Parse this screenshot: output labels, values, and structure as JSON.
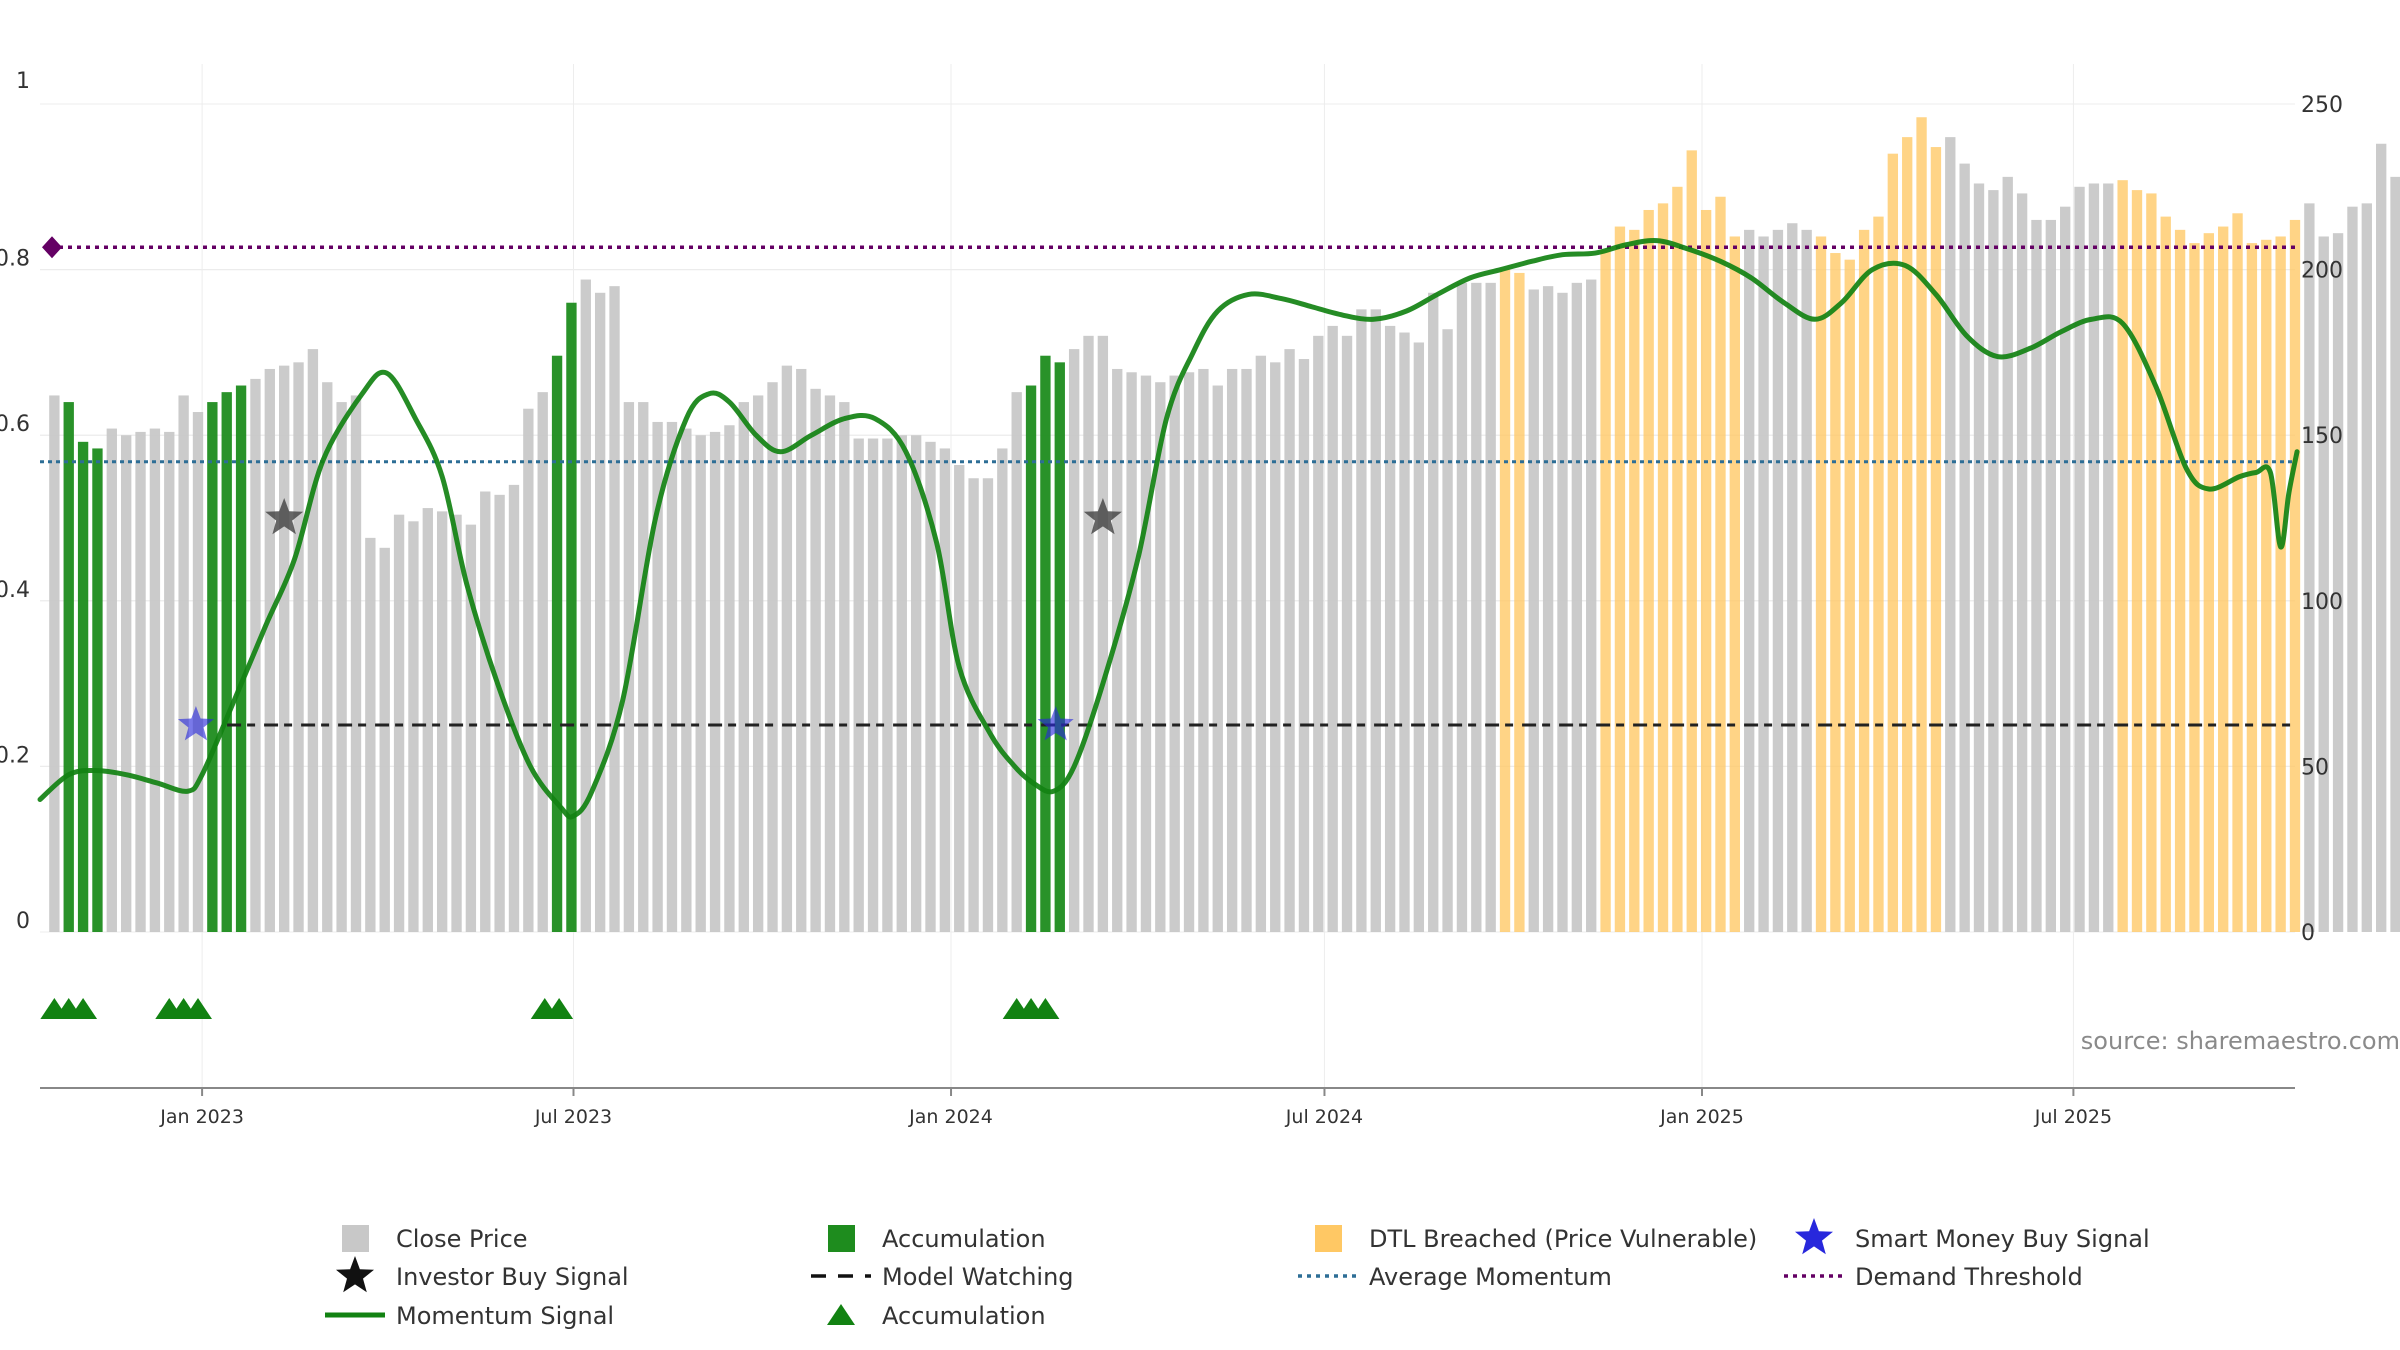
{
  "source_note": "source: sharemaestro.com",
  "colors": {
    "close_price": "#c8c8c8",
    "accumulation": "#1e8c1e",
    "dtl_breached": "#ffc864",
    "momentum": "#128212",
    "average_momentum": "#2d6e96",
    "demand_threshold": "#640064",
    "model_watching": "#222222",
    "smart_money": "#2828dc",
    "investor": "#444444",
    "accum_marker": "#128212"
  },
  "legend": [
    {
      "key": "close",
      "label": "Close Price",
      "icon": "gray-square-icon"
    },
    {
      "key": "accum_bar",
      "label": "Accumulation",
      "icon": "green-square-icon"
    },
    {
      "key": "dtl",
      "label": "DTL Breached (Price Vulnerable)",
      "icon": "orange-square-icon"
    },
    {
      "key": "smart",
      "label": "Smart Money Buy Signal",
      "icon": "blue-star-icon"
    },
    {
      "key": "investor",
      "label": "Investor Buy Signal",
      "icon": "black-star-icon"
    },
    {
      "key": "watching",
      "label": "Model Watching",
      "icon": "dashed-line-icon"
    },
    {
      "key": "avg",
      "label": "Average Momentum",
      "icon": "dotted-line-icon"
    },
    {
      "key": "demand",
      "label": "Demand Threshold",
      "icon": "purple-dotted-line-icon"
    },
    {
      "key": "momentum",
      "label": "Momentum Signal",
      "icon": "green-line-icon"
    },
    {
      "key": "accum_marker",
      "label": "Accumulation",
      "icon": "green-triangle-icon"
    }
  ],
  "chart_data": {
    "type": "bar",
    "title": "",
    "x_range": [
      "2022-10-14",
      "2025-10-17"
    ],
    "x_ticks": [
      {
        "date": "2023-01-01",
        "label": "Jan 2023"
      },
      {
        "date": "2023-07-01",
        "label": "Jul 2023"
      },
      {
        "date": "2024-01-01",
        "label": "Jan 2024"
      },
      {
        "date": "2024-07-01",
        "label": "Jul 2024"
      },
      {
        "date": "2025-01-01",
        "label": "Jan 2025"
      },
      {
        "date": "2025-07-01",
        "label": "Jul 2025"
      }
    ],
    "y_left": {
      "range": [
        0,
        1
      ],
      "ticks": [
        "0",
        "0.2",
        "0.4",
        "0.6",
        "0.8",
        "1"
      ]
    },
    "y_right": {
      "range": [
        0,
        250
      ],
      "ticks": [
        "0",
        "50",
        "100",
        "150",
        "200",
        "250"
      ]
    },
    "grid": true,
    "bar_start": "2022-10-21",
    "bar_interval_days": 7,
    "close_prices": [
      162,
      160,
      148,
      146,
      152,
      150,
      151,
      152,
      151,
      162,
      157,
      160,
      163,
      165,
      167,
      170,
      171,
      172,
      176,
      166,
      160,
      162,
      119,
      116,
      126,
      124,
      128,
      127,
      126,
      123,
      133,
      132,
      135,
      158,
      163,
      174,
      190,
      197,
      193,
      195,
      160,
      160,
      154,
      154,
      152,
      150,
      151,
      153,
      160,
      162,
      166,
      171,
      170,
      164,
      162,
      160,
      149,
      149,
      149,
      150,
      150,
      148,
      146,
      141,
      137,
      137,
      146,
      163,
      165,
      174,
      172,
      176,
      180,
      180,
      170,
      169,
      168,
      166,
      168,
      169,
      170,
      165,
      170,
      170,
      174,
      172,
      176,
      173,
      180,
      183,
      180,
      188,
      188,
      183,
      181,
      178,
      193,
      182,
      196,
      196,
      196,
      200,
      199,
      194,
      195,
      193,
      196,
      197,
      206,
      213,
      212,
      218,
      220,
      225,
      236,
      218,
      222,
      210,
      212,
      210,
      212,
      214,
      212,
      210,
      205,
      203,
      212,
      216,
      235,
      240,
      246,
      237,
      240,
      232,
      226,
      224,
      228,
      223,
      215,
      215,
      219,
      225,
      226,
      226,
      227,
      224,
      223,
      216,
      212,
      208,
      211,
      213,
      217,
      208,
      209,
      210,
      215,
      220,
      210,
      211,
      219,
      220,
      238,
      228,
      232
    ],
    "bar_categories": {
      "accumulation": [
        [
          1,
          1
        ],
        [
          2,
          2
        ],
        [
          3,
          3
        ],
        [
          11,
          11
        ],
        [
          12,
          12
        ],
        [
          13,
          13
        ],
        [
          35,
          35
        ],
        [
          36,
          36
        ],
        [
          68,
          68
        ],
        [
          69,
          69
        ],
        [
          70,
          70
        ]
      ],
      "dtl_breached": [
        [
          101,
          102
        ],
        [
          108,
          117
        ],
        [
          123,
          131
        ],
        [
          144,
          156
        ]
      ]
    },
    "series": [
      {
        "name": "Momentum Signal",
        "axis": "left",
        "points": [
          [
            "2022-10-14",
            0.16
          ],
          [
            "2022-10-28",
            0.19
          ],
          [
            "2022-11-10",
            0.195
          ],
          [
            "2022-11-25",
            0.19
          ],
          [
            "2022-12-10",
            0.18
          ],
          [
            "2022-12-25",
            0.17
          ],
          [
            "2023-01-01",
            0.19
          ],
          [
            "2023-01-15",
            0.27
          ],
          [
            "2023-02-01",
            0.37
          ],
          [
            "2023-02-15",
            0.45
          ],
          [
            "2023-03-01",
            0.57
          ],
          [
            "2023-03-20",
            0.65
          ],
          [
            "2023-04-01",
            0.675
          ],
          [
            "2023-04-15",
            0.62
          ],
          [
            "2023-04-28",
            0.55
          ],
          [
            "2023-05-10",
            0.42
          ],
          [
            "2023-05-25",
            0.3
          ],
          [
            "2023-06-10",
            0.2
          ],
          [
            "2023-06-25",
            0.15
          ],
          [
            "2023-07-01",
            0.14
          ],
          [
            "2023-07-10",
            0.17
          ],
          [
            "2023-07-25",
            0.28
          ],
          [
            "2023-08-10",
            0.5
          ],
          [
            "2023-08-25",
            0.62
          ],
          [
            "2023-09-05",
            0.65
          ],
          [
            "2023-09-15",
            0.64
          ],
          [
            "2023-09-28",
            0.6
          ],
          [
            "2023-10-10",
            0.58
          ],
          [
            "2023-10-25",
            0.6
          ],
          [
            "2023-11-10",
            0.62
          ],
          [
            "2023-11-25",
            0.62
          ],
          [
            "2023-12-10",
            0.58
          ],
          [
            "2023-12-25",
            0.47
          ],
          [
            "2024-01-05",
            0.32
          ],
          [
            "2024-01-20",
            0.24
          ],
          [
            "2024-02-01",
            0.2
          ],
          [
            "2024-02-10",
            0.18
          ],
          [
            "2024-02-20",
            0.17
          ],
          [
            "2024-03-01",
            0.2
          ],
          [
            "2024-03-15",
            0.3
          ],
          [
            "2024-04-01",
            0.45
          ],
          [
            "2024-04-15",
            0.62
          ],
          [
            "2024-04-28",
            0.7
          ],
          [
            "2024-05-10",
            0.75
          ],
          [
            "2024-05-25",
            0.77
          ],
          [
            "2024-06-10",
            0.765
          ],
          [
            "2024-06-25",
            0.755
          ],
          [
            "2024-07-10",
            0.745
          ],
          [
            "2024-07-25",
            0.74
          ],
          [
            "2024-08-10",
            0.75
          ],
          [
            "2024-08-25",
            0.77
          ],
          [
            "2024-09-10",
            0.79
          ],
          [
            "2024-09-25",
            0.8
          ],
          [
            "2024-10-10",
            0.81
          ],
          [
            "2024-10-25",
            0.818
          ],
          [
            "2024-11-10",
            0.82
          ],
          [
            "2024-11-25",
            0.83
          ],
          [
            "2024-12-10",
            0.835
          ],
          [
            "2024-12-25",
            0.825
          ],
          [
            "2025-01-10",
            0.81
          ],
          [
            "2025-01-25",
            0.79
          ],
          [
            "2025-02-10",
            0.76
          ],
          [
            "2025-02-25",
            0.74
          ],
          [
            "2025-03-10",
            0.76
          ],
          [
            "2025-03-25",
            0.8
          ],
          [
            "2025-04-10",
            0.805
          ],
          [
            "2025-04-25",
            0.77
          ],
          [
            "2025-05-10",
            0.72
          ],
          [
            "2025-05-25",
            0.695
          ],
          [
            "2025-06-10",
            0.705
          ],
          [
            "2025-06-25",
            0.725
          ],
          [
            "2025-07-10",
            0.74
          ],
          [
            "2025-07-25",
            0.735
          ],
          [
            "2025-08-10",
            0.66
          ],
          [
            "2025-08-25",
            0.56
          ],
          [
            "2025-09-05",
            0.535
          ],
          [
            "2025-09-20",
            0.55
          ],
          [
            "2025-09-28",
            0.555
          ],
          [
            "2025-10-05",
            0.555
          ],
          [
            "2025-10-10",
            0.465
          ],
          [
            "2025-10-14",
            0.53
          ],
          [
            "2025-10-18",
            0.58
          ]
        ]
      },
      {
        "name": "Average Momentum",
        "axis": "left",
        "value": 0.568
      },
      {
        "name": "Demand Threshold",
        "axis": "left",
        "value": 0.827
      },
      {
        "name": "Model Watching",
        "axis": "left",
        "value": 0.25,
        "start": "2023-01-01",
        "end": "2025-10-17"
      }
    ],
    "smart_money_signals": [
      [
        "2022-12-29",
        0.25
      ],
      [
        "2024-02-21",
        0.25
      ]
    ],
    "investor_signals": [
      [
        "2023-02-10",
        0.5
      ],
      [
        "2024-03-15",
        0.5
      ]
    ],
    "accumulation_markers": [
      "2022-10-21",
      "2022-10-28",
      "2022-11-04",
      "2022-12-16",
      "2022-12-23",
      "2022-12-30",
      "2023-06-17",
      "2023-06-24",
      "2024-02-02",
      "2024-02-09",
      "2024-02-16"
    ]
  }
}
